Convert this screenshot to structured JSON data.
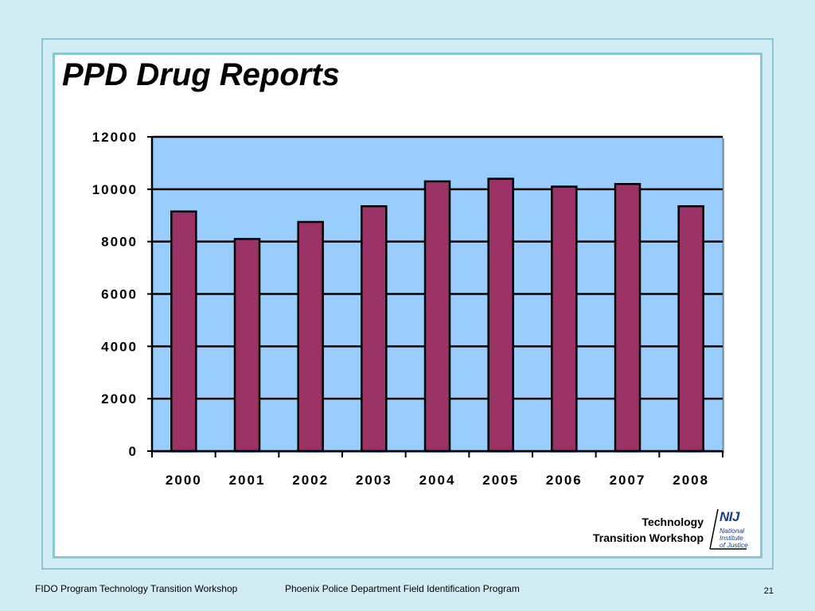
{
  "slide": {
    "title": "PPD Drug Reports",
    "workshop_line1": "Technology",
    "workshop_line2": "Transition Workshop",
    "logo_text": "NIJ",
    "logo_sub1": "National",
    "logo_sub2": "Institute",
    "logo_sub3": "of Justice",
    "footer_left": "FIDO Program Technology Transition Workshop",
    "footer_center": "Phoenix Police Department Field Identification Program",
    "page_number": "21"
  },
  "colors": {
    "background": "#d2ecf4",
    "plot_area": "#99ccff",
    "bar_fill": "#993366",
    "frame": "#8cc6d4"
  },
  "chart_data": {
    "type": "bar",
    "title": "",
    "xlabel": "",
    "ylabel": "",
    "categories": [
      "2000",
      "2001",
      "2002",
      "2003",
      "2004",
      "2005",
      "2006",
      "2007",
      "2008"
    ],
    "values": [
      9150,
      8100,
      8750,
      9350,
      10300,
      10400,
      10100,
      10200,
      9350
    ],
    "ylim": [
      0,
      12000
    ],
    "yticks": [
      0,
      2000,
      4000,
      6000,
      8000,
      10000,
      12000
    ],
    "grid": true,
    "legend": "none"
  }
}
